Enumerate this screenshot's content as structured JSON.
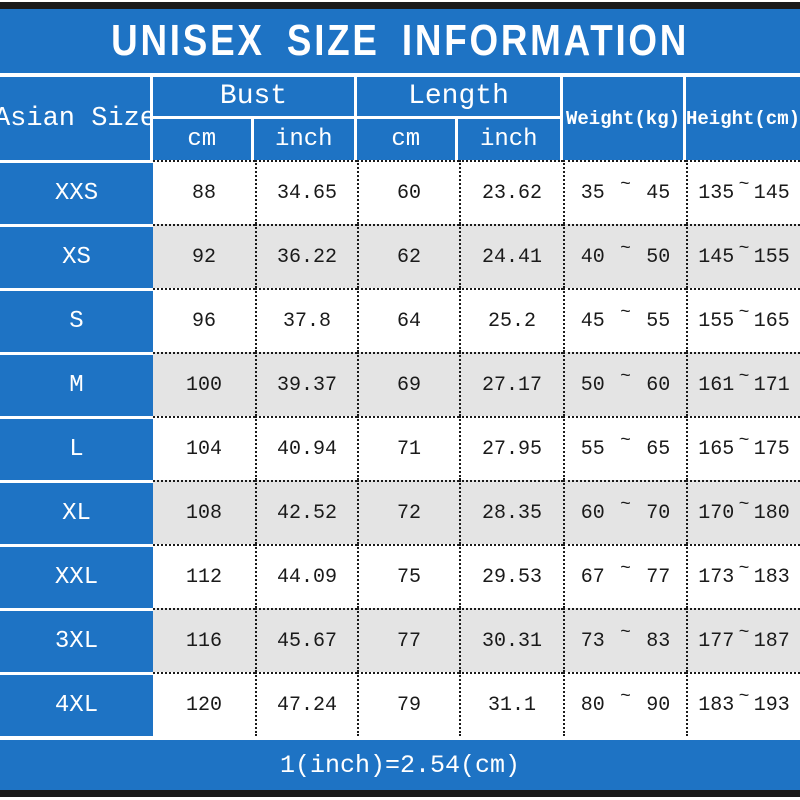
{
  "title": "UNISEX SIZE INFORMATION",
  "footer_note": "1(inch)=2.54(cm)",
  "symbols": {
    "tilde": "~"
  },
  "colors": {
    "blue": "#1e73c4",
    "stripe_gray": "#e4e4e4",
    "bar_black": "#1a1a1a",
    "text": "#1a1a1a"
  },
  "header": {
    "size_col": "Asian Size",
    "groups": [
      {
        "label": "Bust",
        "sub": [
          "cm",
          "inch"
        ]
      },
      {
        "label": "Length",
        "sub": [
          "cm",
          "inch"
        ]
      }
    ],
    "weight_col": "Weight(kg)",
    "height_col": "Height(cm)"
  },
  "rows": [
    {
      "size": "XXS",
      "bust_cm": "88",
      "bust_inch": "34.65",
      "length_cm": "60",
      "length_inch": "23.62",
      "weight_min": "35",
      "weight_max": "45",
      "height_min": "135",
      "height_max": "145"
    },
    {
      "size": "XS",
      "bust_cm": "92",
      "bust_inch": "36.22",
      "length_cm": "62",
      "length_inch": "24.41",
      "weight_min": "40",
      "weight_max": "50",
      "height_min": "145",
      "height_max": "155"
    },
    {
      "size": "S",
      "bust_cm": "96",
      "bust_inch": "37.8",
      "length_cm": "64",
      "length_inch": "25.2",
      "weight_min": "45",
      "weight_max": "55",
      "height_min": "155",
      "height_max": "165"
    },
    {
      "size": "M",
      "bust_cm": "100",
      "bust_inch": "39.37",
      "length_cm": "69",
      "length_inch": "27.17",
      "weight_min": "50",
      "weight_max": "60",
      "height_min": "161",
      "height_max": "171"
    },
    {
      "size": "L",
      "bust_cm": "104",
      "bust_inch": "40.94",
      "length_cm": "71",
      "length_inch": "27.95",
      "weight_min": "55",
      "weight_max": "65",
      "height_min": "165",
      "height_max": "175"
    },
    {
      "size": "XL",
      "bust_cm": "108",
      "bust_inch": "42.52",
      "length_cm": "72",
      "length_inch": "28.35",
      "weight_min": "60",
      "weight_max": "70",
      "height_min": "170",
      "height_max": "180"
    },
    {
      "size": "XXL",
      "bust_cm": "112",
      "bust_inch": "44.09",
      "length_cm": "75",
      "length_inch": "29.53",
      "weight_min": "67",
      "weight_max": "77",
      "height_min": "173",
      "height_max": "183"
    },
    {
      "size": "3XL",
      "bust_cm": "116",
      "bust_inch": "45.67",
      "length_cm": "77",
      "length_inch": "30.31",
      "weight_min": "73",
      "weight_max": "83",
      "height_min": "177",
      "height_max": "187"
    },
    {
      "size": "4XL",
      "bust_cm": "120",
      "bust_inch": "47.24",
      "length_cm": "79",
      "length_inch": "31.1",
      "weight_min": "80",
      "weight_max": "90",
      "height_min": "183",
      "height_max": "193"
    }
  ],
  "chart_data": {
    "type": "table",
    "title": "UNISEX SIZE INFORMATION",
    "columns": [
      "Asian Size",
      "Bust cm",
      "Bust inch",
      "Length cm",
      "Length inch",
      "Weight(kg)",
      "Height(cm)"
    ],
    "rows": [
      [
        "XXS",
        "88",
        "34.65",
        "60",
        "23.62",
        "35~45",
        "135~145"
      ],
      [
        "XS",
        "92",
        "36.22",
        "62",
        "24.41",
        "40~50",
        "145~155"
      ],
      [
        "S",
        "96",
        "37.8",
        "64",
        "25.2",
        "45~55",
        "155~165"
      ],
      [
        "M",
        "100",
        "39.37",
        "69",
        "27.17",
        "50~60",
        "161~171"
      ],
      [
        "L",
        "104",
        "40.94",
        "71",
        "27.95",
        "55~65",
        "165~175"
      ],
      [
        "XL",
        "108",
        "42.52",
        "72",
        "28.35",
        "60~70",
        "170~180"
      ],
      [
        "XXL",
        "112",
        "44.09",
        "75",
        "29.53",
        "67~77",
        "173~183"
      ],
      [
        "3XL",
        "116",
        "45.67",
        "77",
        "30.31",
        "73~83",
        "177~187"
      ],
      [
        "4XL",
        "120",
        "47.24",
        "79",
        "31.1",
        "80~90",
        "183~193"
      ]
    ],
    "footnote": "1(inch)=2.54(cm)"
  }
}
